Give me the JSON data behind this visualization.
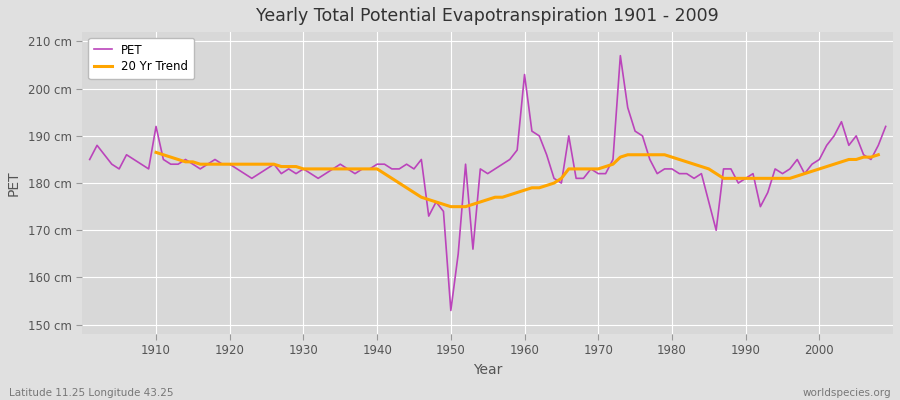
{
  "title": "Yearly Total Potential Evapotranspiration 1901 - 2009",
  "ylabel": "PET",
  "xlabel": "Year",
  "bottom_left_label": "Latitude 11.25 Longitude 43.25",
  "bottom_right_label": "worldspecies.org",
  "pet_color": "#bb44bb",
  "trend_color": "#ffa500",
  "fig_bg_color": "#e0e0e0",
  "plot_bg_color": "#d8d8d8",
  "ylim": [
    148,
    212
  ],
  "yticks": [
    150,
    160,
    170,
    180,
    190,
    200,
    210
  ],
  "ytick_labels": [
    "150 cm",
    "160 cm",
    "170 cm",
    "180 cm",
    "190 cm",
    "200 cm",
    "210 cm"
  ],
  "xlim": [
    1900,
    2010
  ],
  "xticks": [
    1910,
    1920,
    1930,
    1940,
    1950,
    1960,
    1970,
    1980,
    1990,
    2000
  ],
  "years": [
    1901,
    1902,
    1903,
    1904,
    1905,
    1906,
    1907,
    1908,
    1909,
    1910,
    1911,
    1912,
    1913,
    1914,
    1915,
    1916,
    1917,
    1918,
    1919,
    1920,
    1921,
    1922,
    1923,
    1924,
    1925,
    1926,
    1927,
    1928,
    1929,
    1930,
    1931,
    1932,
    1933,
    1934,
    1935,
    1936,
    1937,
    1938,
    1939,
    1940,
    1941,
    1942,
    1943,
    1944,
    1945,
    1946,
    1947,
    1948,
    1949,
    1950,
    1951,
    1952,
    1953,
    1954,
    1955,
    1956,
    1957,
    1958,
    1959,
    1960,
    1961,
    1962,
    1963,
    1964,
    1965,
    1966,
    1967,
    1968,
    1969,
    1970,
    1971,
    1972,
    1973,
    1974,
    1975,
    1976,
    1977,
    1978,
    1979,
    1980,
    1981,
    1982,
    1983,
    1984,
    1985,
    1986,
    1987,
    1988,
    1989,
    1990,
    1991,
    1992,
    1993,
    1994,
    1995,
    1996,
    1997,
    1998,
    1999,
    2000,
    2001,
    2002,
    2003,
    2004,
    2005,
    2006,
    2007,
    2008,
    2009
  ],
  "pet_values": [
    185,
    188,
    186,
    184,
    183,
    186,
    185,
    184,
    183,
    192,
    185,
    184,
    184,
    185,
    184,
    183,
    184,
    185,
    184,
    184,
    183,
    182,
    181,
    182,
    183,
    184,
    182,
    183,
    182,
    183,
    182,
    181,
    182,
    183,
    184,
    183,
    182,
    183,
    183,
    184,
    184,
    183,
    183,
    184,
    183,
    185,
    173,
    176,
    174,
    153,
    165,
    184,
    166,
    183,
    182,
    183,
    184,
    185,
    187,
    203,
    191,
    190,
    186,
    181,
    180,
    190,
    181,
    181,
    183,
    182,
    182,
    185,
    207,
    196,
    191,
    190,
    185,
    182,
    183,
    183,
    182,
    182,
    181,
    182,
    176,
    170,
    183,
    183,
    180,
    181,
    182,
    175,
    178,
    183,
    182,
    183,
    185,
    182,
    184,
    185,
    188,
    190,
    193,
    188,
    190,
    186,
    185,
    188,
    192
  ],
  "trend_values": [
    null,
    null,
    null,
    null,
    null,
    null,
    null,
    null,
    null,
    186.5,
    186,
    185.5,
    185,
    184.5,
    184.5,
    184,
    184,
    184,
    184,
    184,
    184,
    184,
    184,
    184,
    184,
    184,
    183.5,
    183.5,
    183.5,
    183,
    183,
    183,
    183,
    183,
    183,
    183,
    183,
    183,
    183,
    183,
    182,
    181,
    180,
    179,
    178,
    177,
    176.5,
    176,
    175.5,
    175,
    175,
    175,
    175.5,
    176,
    176.5,
    177,
    177,
    177.5,
    178,
    178.5,
    179,
    179,
    179.5,
    180,
    181,
    183,
    183,
    183,
    183,
    183,
    183.5,
    184,
    185.5,
    186,
    186,
    186,
    186,
    186,
    186,
    185.5,
    185,
    184.5,
    184,
    183.5,
    183,
    182,
    181,
    181,
    181,
    181,
    181,
    181,
    181,
    181,
    181,
    181,
    181.5,
    182,
    182.5,
    183,
    183.5,
    184,
    184.5,
    185,
    185,
    185.5,
    185.5,
    186,
    null
  ]
}
